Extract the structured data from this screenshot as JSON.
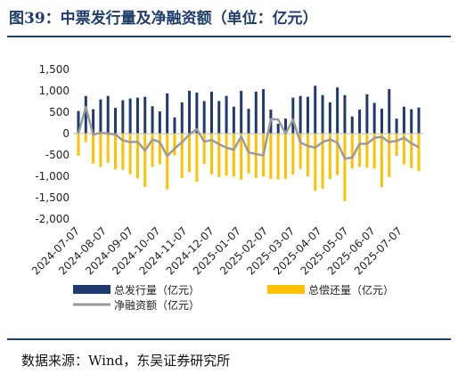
{
  "title": "图39：中票发行量及净融资额（单位：亿元）",
  "source": "数据来源：Wind，东吴证券研究所",
  "chart_data": {
    "type": "bar",
    "title": "中票发行量及净融资额（单位：亿元）",
    "unit": "亿元",
    "ylim": [
      -2000,
      1500
    ],
    "yticks": [
      "1,500",
      "1,000",
      "500",
      "0",
      "-500",
      "-1,000",
      "-1,500",
      "-2,000"
    ],
    "ytick_values": [
      1500,
      1000,
      500,
      0,
      -500,
      -1000,
      -1500,
      -2000
    ],
    "xtick_labels": [
      "2024-07-07",
      "2024-08-07",
      "2024-09-07",
      "2024-10-07",
      "2024-11-07",
      "2024-12-07",
      "2025-01-07",
      "2025-02-07",
      "2025-03-07",
      "2025-04-07",
      "2025-05-07",
      "2025-06-07",
      "2025-07-07"
    ],
    "grid": false,
    "legend_position": "bottom",
    "colors": {
      "issuance": "#1f3a6e",
      "repayment": "#ffc000",
      "net": "#9a9a9a"
    },
    "series": [
      {
        "name": "总发行量（亿元）",
        "kind": "bar",
        "values": [
          530,
          880,
          570,
          800,
          880,
          600,
          780,
          820,
          840,
          860,
          640,
          520,
          940,
          380,
          730,
          1000,
          960,
          760,
          980,
          760,
          880,
          630,
          1000,
          580,
          980,
          1040,
          560,
          230,
          350,
          840,
          880,
          860,
          1120,
          900,
          730,
          1080,
          900,
          400,
          560,
          920,
          720,
          580,
          1040,
          350,
          630,
          570,
          610
        ]
      },
      {
        "name": "总偿还量（亿元）",
        "kind": "bar",
        "values": [
          -520,
          -200,
          -700,
          -780,
          -680,
          -840,
          -850,
          -950,
          -1050,
          -1250,
          -780,
          -720,
          -1300,
          -500,
          -1040,
          -900,
          -1130,
          -710,
          -950,
          -1020,
          -990,
          -1010,
          -1080,
          -930,
          -1040,
          -1000,
          -1060,
          -1070,
          -1060,
          -960,
          -830,
          -1000,
          -1340,
          -1290,
          -1060,
          -970,
          -1580,
          -820,
          -780,
          -800,
          -820,
          -1250,
          -1020,
          -520,
          -720,
          -810,
          -880
        ]
      },
      {
        "name": "净融资额（亿元）",
        "kind": "line",
        "values": [
          0,
          620,
          -30,
          20,
          0,
          -20,
          -160,
          -200,
          -190,
          -400,
          -140,
          -200,
          -530,
          -350,
          -200,
          -20,
          100,
          -190,
          -150,
          -250,
          -330,
          -380,
          -70,
          -440,
          -480,
          -510,
          340,
          330,
          0,
          330,
          -210,
          -290,
          -330,
          -200,
          -140,
          -210,
          -590,
          -560,
          -240,
          -240,
          -100,
          -80,
          -200,
          -170,
          -100,
          -230,
          -320
        ]
      }
    ]
  }
}
